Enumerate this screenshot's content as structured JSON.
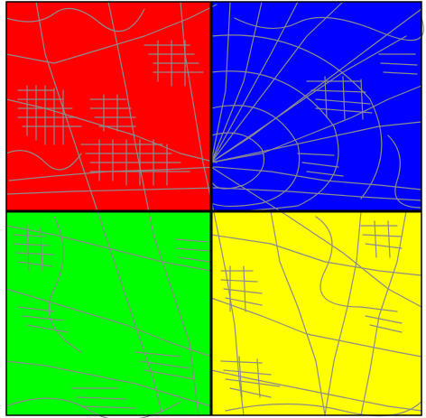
{
  "map": {
    "quadrants": [
      {
        "id": "top-left",
        "color": "#ff0000"
      },
      {
        "id": "top-right",
        "color": "#0000ff"
      },
      {
        "id": "bottom-left",
        "color": "#00ff00"
      },
      {
        "id": "bottom-right",
        "color": "#ffff00"
      }
    ],
    "road_color": "#8c8c8c",
    "border_color": "#000000",
    "divider_color": "#000000"
  }
}
